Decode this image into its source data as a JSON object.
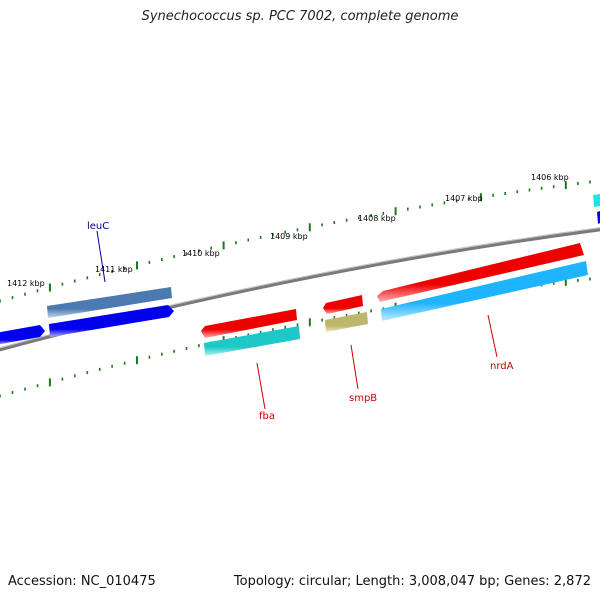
{
  "title": "Synechococcus sp. PCC 7002, complete genome",
  "footer": {
    "accession": "Accession: NC_010475",
    "summary": "Topology: circular; Length: 3,008,047 bp; Genes: 2,872"
  },
  "kbp_labels": [
    "1412 kbp",
    "1411 kbp",
    "1410 kbp",
    "1409 kbp",
    "1408 kbp",
    "1407 kbp",
    "1406 kbp"
  ],
  "gene_labels": {
    "leuC": "leuC",
    "fba": "fba",
    "smpB": "smpB",
    "nrdA": "nrdA"
  },
  "colors": {
    "backbone": "#808080",
    "tick": "#1a7a1a",
    "blue": "#0000ee",
    "steel": "#4a7ab0",
    "red": "#ee0000",
    "teal": "#1ec8c8",
    "khaki": "#bdb76b",
    "skyblue": "#1eb4ff",
    "label_blue": "#00008b",
    "label_red": "#cc0000"
  }
}
